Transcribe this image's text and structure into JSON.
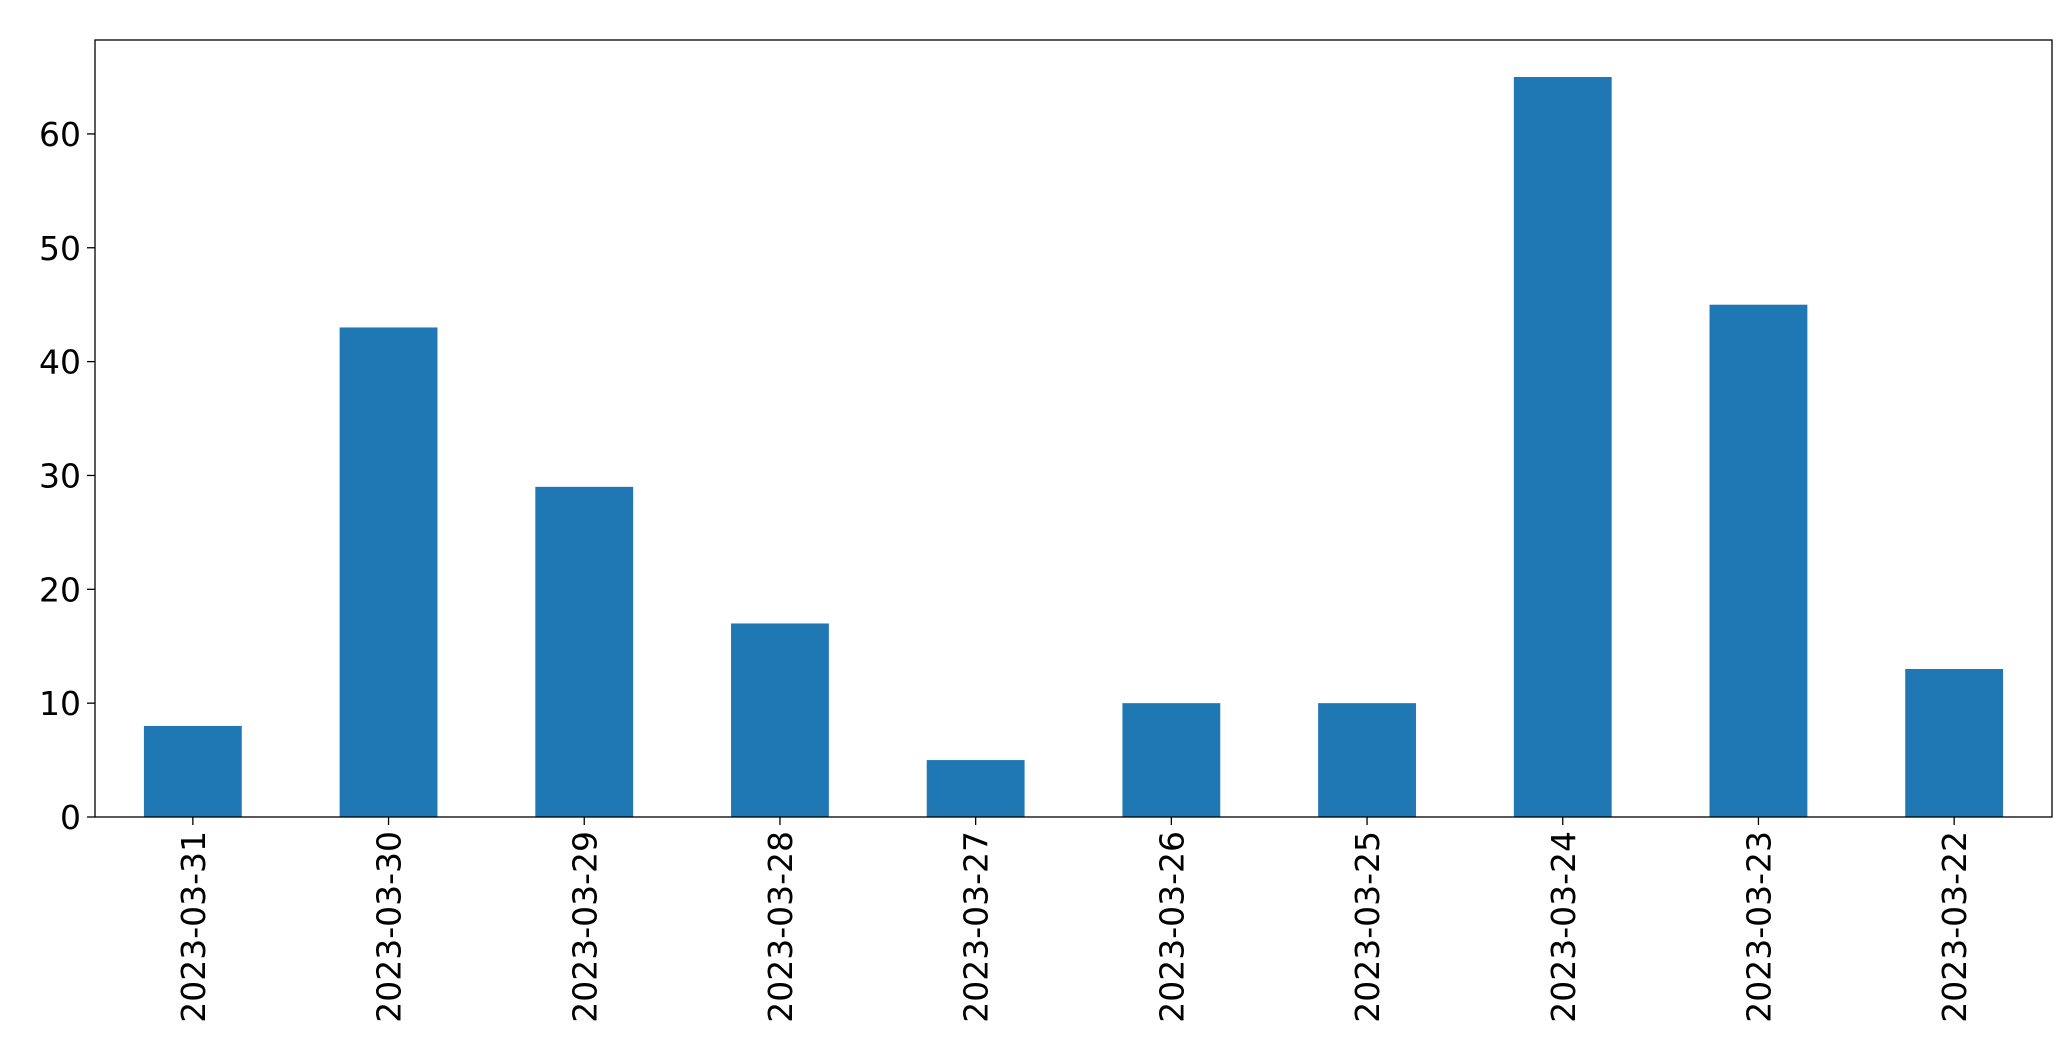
{
  "chart_data": {
    "type": "bar",
    "categories": [
      "2023-03-31",
      "2023-03-30",
      "2023-03-29",
      "2023-03-28",
      "2023-03-27",
      "2023-03-26",
      "2023-03-25",
      "2023-03-24",
      "2023-03-23",
      "2023-03-22"
    ],
    "values": [
      8,
      43,
      29,
      17,
      5,
      10,
      10,
      65,
      45,
      13
    ],
    "color": "#1f77b4",
    "ylim": [
      0,
      68.25
    ],
    "yticks": [
      0,
      10,
      20,
      30,
      40,
      50,
      60
    ],
    "grid": false
  }
}
